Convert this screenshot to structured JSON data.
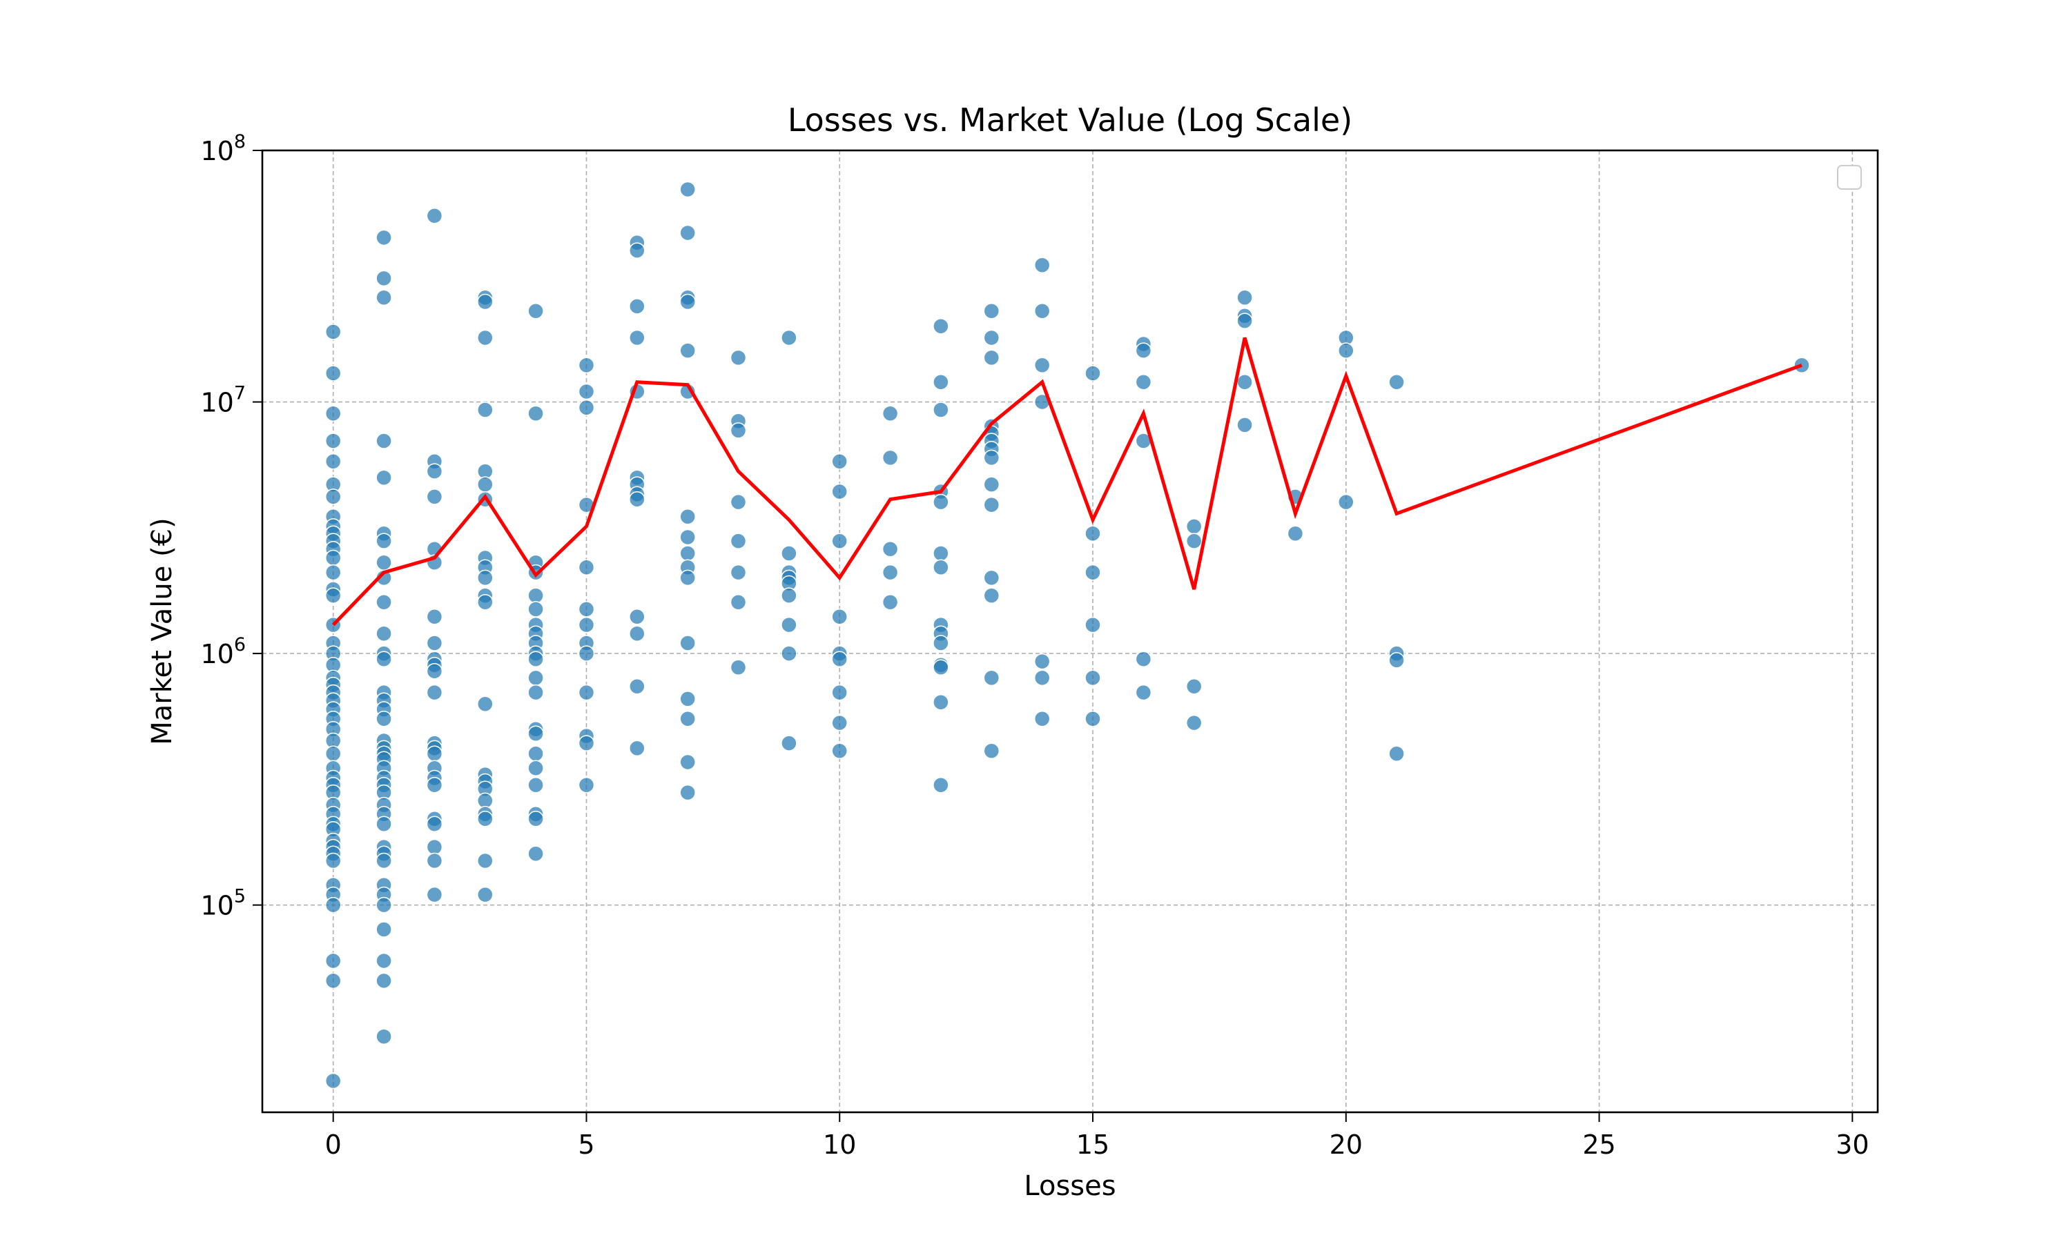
{
  "chart_data": {
    "type": "scatter",
    "title": "Losses vs. Market Value (Log Scale)",
    "xlabel": "Losses",
    "ylabel": "Market Value (€)",
    "xlim": [
      -1.4,
      30.5
    ],
    "ylim": [
      15000,
      100000000
    ],
    "y_scale": "log",
    "grid": true,
    "legend": "top-right (empty)",
    "x_ticks": [
      0,
      5,
      10,
      15,
      20,
      25,
      30
    ],
    "x_tick_labels": [
      "0",
      "5",
      "10",
      "15",
      "20",
      "25",
      "30"
    ],
    "y_ticks": [
      100000,
      1000000,
      10000000,
      100000000
    ],
    "y_tick_bases": [
      "10",
      "10",
      "10",
      "10"
    ],
    "y_tick_exponents": [
      "5",
      "6",
      "7",
      "8"
    ],
    "colors": {
      "points": "#1f77b4",
      "line": "#ff0000",
      "grid": "#b0b0b0"
    },
    "series": [
      {
        "type": "scatter",
        "points": [
          [
            0,
            19000000
          ],
          [
            0,
            13000000
          ],
          [
            0,
            9000000
          ],
          [
            0,
            7000000
          ],
          [
            0,
            5800000
          ],
          [
            0,
            4700000
          ],
          [
            0,
            4200000
          ],
          [
            0,
            3500000
          ],
          [
            0,
            3200000
          ],
          [
            0,
            3000000
          ],
          [
            0,
            2800000
          ],
          [
            0,
            2600000
          ],
          [
            0,
            2400000
          ],
          [
            0,
            2100000
          ],
          [
            0,
            1800000
          ],
          [
            0,
            1700000
          ],
          [
            0,
            1300000
          ],
          [
            0,
            1100000
          ],
          [
            0,
            1000000
          ],
          [
            0,
            900000
          ],
          [
            0,
            800000
          ],
          [
            0,
            750000
          ],
          [
            0,
            700000
          ],
          [
            0,
            650000
          ],
          [
            0,
            600000
          ],
          [
            0,
            550000
          ],
          [
            0,
            500000
          ],
          [
            0,
            450000
          ],
          [
            0,
            400000
          ],
          [
            0,
            350000
          ],
          [
            0,
            320000
          ],
          [
            0,
            300000
          ],
          [
            0,
            280000
          ],
          [
            0,
            250000
          ],
          [
            0,
            230000
          ],
          [
            0,
            210000
          ],
          [
            0,
            200000
          ],
          [
            0,
            180000
          ],
          [
            0,
            170000
          ],
          [
            0,
            160000
          ],
          [
            0,
            150000
          ],
          [
            0,
            120000
          ],
          [
            0,
            110000
          ],
          [
            0,
            100000
          ],
          [
            0,
            60000
          ],
          [
            0,
            50000
          ],
          [
            0,
            20000
          ],
          [
            1,
            45000000
          ],
          [
            1,
            31000000
          ],
          [
            1,
            26000000
          ],
          [
            1,
            7000000
          ],
          [
            1,
            5000000
          ],
          [
            1,
            3000000
          ],
          [
            1,
            2800000
          ],
          [
            1,
            2300000
          ],
          [
            1,
            2000000
          ],
          [
            1,
            1600000
          ],
          [
            1,
            1200000
          ],
          [
            1,
            1000000
          ],
          [
            1,
            950000
          ],
          [
            1,
            700000
          ],
          [
            1,
            650000
          ],
          [
            1,
            600000
          ],
          [
            1,
            550000
          ],
          [
            1,
            450000
          ],
          [
            1,
            420000
          ],
          [
            1,
            400000
          ],
          [
            1,
            380000
          ],
          [
            1,
            350000
          ],
          [
            1,
            320000
          ],
          [
            1,
            300000
          ],
          [
            1,
            280000
          ],
          [
            1,
            250000
          ],
          [
            1,
            230000
          ],
          [
            1,
            210000
          ],
          [
            1,
            170000
          ],
          [
            1,
            160000
          ],
          [
            1,
            150000
          ],
          [
            1,
            120000
          ],
          [
            1,
            110000
          ],
          [
            1,
            100000
          ],
          [
            1,
            80000
          ],
          [
            1,
            60000
          ],
          [
            1,
            50000
          ],
          [
            1,
            30000
          ],
          [
            2,
            55000000
          ],
          [
            2,
            5800000
          ],
          [
            2,
            5300000
          ],
          [
            2,
            4200000
          ],
          [
            2,
            2600000
          ],
          [
            2,
            2300000
          ],
          [
            2,
            1400000
          ],
          [
            2,
            1100000
          ],
          [
            2,
            950000
          ],
          [
            2,
            900000
          ],
          [
            2,
            850000
          ],
          [
            2,
            700000
          ],
          [
            2,
            440000
          ],
          [
            2,
            420000
          ],
          [
            2,
            400000
          ],
          [
            2,
            350000
          ],
          [
            2,
            320000
          ],
          [
            2,
            300000
          ],
          [
            2,
            220000
          ],
          [
            2,
            210000
          ],
          [
            2,
            170000
          ],
          [
            2,
            150000
          ],
          [
            2,
            110000
          ],
          [
            3,
            26000000
          ],
          [
            3,
            25000000
          ],
          [
            3,
            18000000
          ],
          [
            3,
            9300000
          ],
          [
            3,
            5300000
          ],
          [
            3,
            4700000
          ],
          [
            3,
            4100000
          ],
          [
            3,
            2400000
          ],
          [
            3,
            2200000
          ],
          [
            3,
            2000000
          ],
          [
            3,
            1700000
          ],
          [
            3,
            1600000
          ],
          [
            3,
            630000
          ],
          [
            3,
            330000
          ],
          [
            3,
            310000
          ],
          [
            3,
            290000
          ],
          [
            3,
            260000
          ],
          [
            3,
            230000
          ],
          [
            3,
            220000
          ],
          [
            3,
            150000
          ],
          [
            3,
            110000
          ],
          [
            4,
            23000000
          ],
          [
            4,
            9000000
          ],
          [
            4,
            2300000
          ],
          [
            4,
            2100000
          ],
          [
            4,
            1700000
          ],
          [
            4,
            1500000
          ],
          [
            4,
            1300000
          ],
          [
            4,
            1200000
          ],
          [
            4,
            1100000
          ],
          [
            4,
            1000000
          ],
          [
            4,
            950000
          ],
          [
            4,
            800000
          ],
          [
            4,
            700000
          ],
          [
            4,
            500000
          ],
          [
            4,
            480000
          ],
          [
            4,
            400000
          ],
          [
            4,
            350000
          ],
          [
            4,
            300000
          ],
          [
            4,
            230000
          ],
          [
            4,
            220000
          ],
          [
            4,
            160000
          ],
          [
            5,
            14000000
          ],
          [
            5,
            11000000
          ],
          [
            5,
            9500000
          ],
          [
            5,
            3900000
          ],
          [
            5,
            2200000
          ],
          [
            5,
            1500000
          ],
          [
            5,
            1300000
          ],
          [
            5,
            1100000
          ],
          [
            5,
            1000000
          ],
          [
            5,
            700000
          ],
          [
            5,
            470000
          ],
          [
            5,
            440000
          ],
          [
            5,
            300000
          ],
          [
            6,
            43000000
          ],
          [
            6,
            40000000
          ],
          [
            6,
            24000000
          ],
          [
            6,
            18000000
          ],
          [
            6,
            11000000
          ],
          [
            6,
            5000000
          ],
          [
            6,
            4700000
          ],
          [
            6,
            4300000
          ],
          [
            6,
            4100000
          ],
          [
            6,
            1400000
          ],
          [
            6,
            1200000
          ],
          [
            6,
            740000
          ],
          [
            6,
            420000
          ],
          [
            7,
            70000000
          ],
          [
            7,
            47000000
          ],
          [
            7,
            26000000
          ],
          [
            7,
            25000000
          ],
          [
            7,
            16000000
          ],
          [
            7,
            11000000
          ],
          [
            7,
            3500000
          ],
          [
            7,
            2900000
          ],
          [
            7,
            2500000
          ],
          [
            7,
            2200000
          ],
          [
            7,
            2000000
          ],
          [
            7,
            1100000
          ],
          [
            7,
            660000
          ],
          [
            7,
            550000
          ],
          [
            7,
            370000
          ],
          [
            7,
            280000
          ],
          [
            8,
            15000000
          ],
          [
            8,
            8400000
          ],
          [
            8,
            7700000
          ],
          [
            8,
            4000000
          ],
          [
            8,
            2800000
          ],
          [
            8,
            2100000
          ],
          [
            8,
            1600000
          ],
          [
            8,
            880000
          ],
          [
            9,
            18000000
          ],
          [
            9,
            2500000
          ],
          [
            9,
            2100000
          ],
          [
            9,
            2000000
          ],
          [
            9,
            1900000
          ],
          [
            9,
            1700000
          ],
          [
            9,
            1300000
          ],
          [
            9,
            1000000
          ],
          [
            9,
            440000
          ],
          [
            10,
            5800000
          ],
          [
            10,
            4400000
          ],
          [
            10,
            2800000
          ],
          [
            10,
            1400000
          ],
          [
            10,
            1000000
          ],
          [
            10,
            950000
          ],
          [
            10,
            700000
          ],
          [
            10,
            530000
          ],
          [
            10,
            410000
          ],
          [
            11,
            9000000
          ],
          [
            11,
            6000000
          ],
          [
            11,
            2600000
          ],
          [
            11,
            2100000
          ],
          [
            11,
            1600000
          ],
          [
            12,
            20000000
          ],
          [
            12,
            12000000
          ],
          [
            12,
            9300000
          ],
          [
            12,
            4400000
          ],
          [
            12,
            4000000
          ],
          [
            12,
            2500000
          ],
          [
            12,
            2200000
          ],
          [
            12,
            1300000
          ],
          [
            12,
            1200000
          ],
          [
            12,
            1100000
          ],
          [
            12,
            900000
          ],
          [
            12,
            880000
          ],
          [
            12,
            640000
          ],
          [
            12,
            300000
          ],
          [
            13,
            23000000
          ],
          [
            13,
            18000000
          ],
          [
            13,
            15000000
          ],
          [
            13,
            8000000
          ],
          [
            13,
            7500000
          ],
          [
            13,
            7000000
          ],
          [
            13,
            6500000
          ],
          [
            13,
            6000000
          ],
          [
            13,
            4700000
          ],
          [
            13,
            3900000
          ],
          [
            13,
            2000000
          ],
          [
            13,
            1700000
          ],
          [
            13,
            800000
          ],
          [
            13,
            410000
          ],
          [
            14,
            35000000
          ],
          [
            14,
            23000000
          ],
          [
            14,
            14000000
          ],
          [
            14,
            10000000
          ],
          [
            14,
            930000
          ],
          [
            14,
            800000
          ],
          [
            14,
            550000
          ],
          [
            15,
            13000000
          ],
          [
            15,
            3000000
          ],
          [
            15,
            2100000
          ],
          [
            15,
            1300000
          ],
          [
            15,
            800000
          ],
          [
            15,
            550000
          ],
          [
            16,
            17000000
          ],
          [
            16,
            16000000
          ],
          [
            16,
            12000000
          ],
          [
            16,
            7000000
          ],
          [
            16,
            950000
          ],
          [
            16,
            700000
          ],
          [
            17,
            3200000
          ],
          [
            17,
            2800000
          ],
          [
            17,
            740000
          ],
          [
            17,
            530000
          ],
          [
            18,
            26000000
          ],
          [
            18,
            22000000
          ],
          [
            18,
            21000000
          ],
          [
            18,
            12000000
          ],
          [
            18,
            8100000
          ],
          [
            19,
            4200000
          ],
          [
            19,
            3000000
          ],
          [
            20,
            18000000
          ],
          [
            20,
            16000000
          ],
          [
            20,
            4000000
          ],
          [
            21,
            12000000
          ],
          [
            21,
            1000000
          ],
          [
            21,
            940000
          ],
          [
            21,
            400000
          ],
          [
            29,
            14000000
          ]
        ]
      },
      {
        "type": "line",
        "x": [
          0,
          1,
          2,
          3,
          4,
          5,
          6,
          7,
          8,
          9,
          10,
          11,
          12,
          13,
          14,
          15,
          16,
          17,
          18,
          19,
          20,
          21,
          29
        ],
        "y": [
          1300000,
          2100000,
          2400000,
          4200000,
          2050000,
          3200000,
          12000000,
          11700000,
          5300000,
          3400000,
          2000000,
          4100000,
          4400000,
          8200000,
          12000000,
          3400000,
          9000000,
          1800000,
          18000000,
          3600000,
          12700000,
          3600000,
          14000000
        ]
      }
    ]
  }
}
